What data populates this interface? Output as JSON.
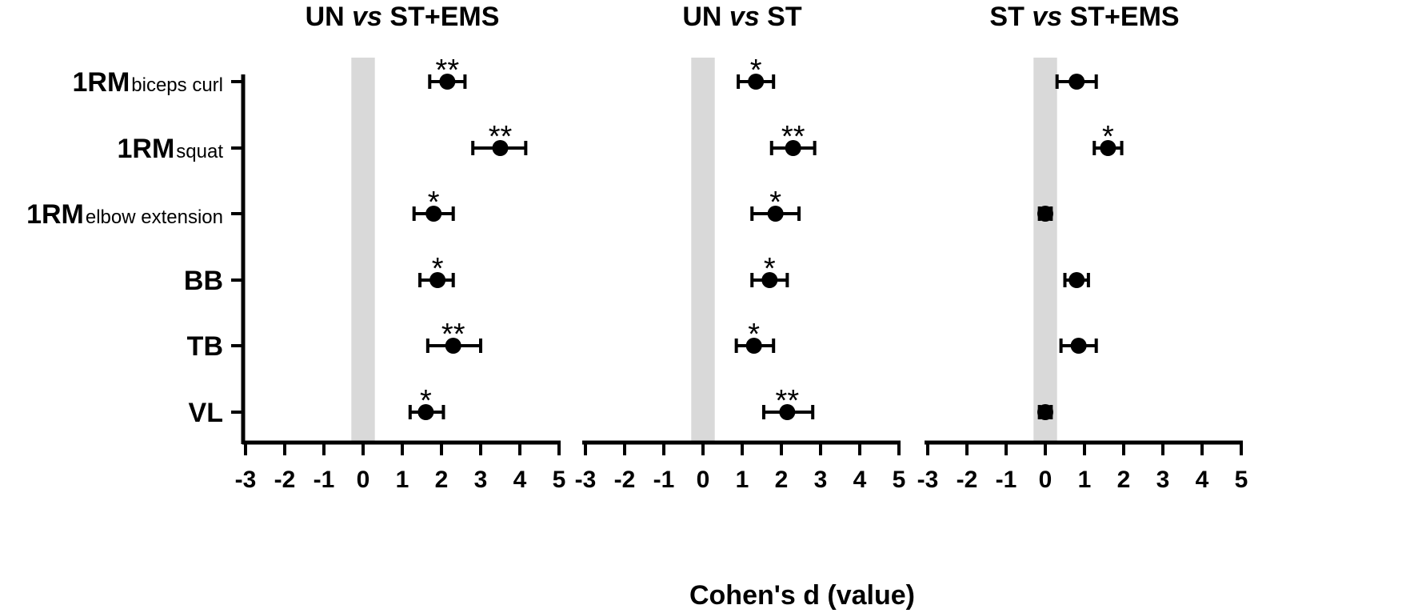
{
  "chart_data": {
    "type": "forest",
    "xlabel": "Cohen's d (value)",
    "xlim": [
      -3,
      5
    ],
    "xticks": [
      "-3",
      "-2",
      "-1",
      "0",
      "1",
      "2",
      "3",
      "4",
      "5"
    ],
    "reference_band": [
      -0.3,
      0.3
    ],
    "rows": [
      {
        "main": "1RM",
        "sub": "biceps curl"
      },
      {
        "main": "1RM",
        "sub": "squat"
      },
      {
        "main": "1RM",
        "sub": "elbow extension"
      },
      {
        "main": "BB",
        "sub": ""
      },
      {
        "main": "TB",
        "sub": ""
      },
      {
        "main": "VL",
        "sub": ""
      }
    ],
    "panels": [
      {
        "title_a": "UN ",
        "title_b": "vs",
        "title_c": " ST+EMS",
        "points": [
          {
            "d": 2.15,
            "lo": 1.7,
            "hi": 2.6,
            "sig": "**"
          },
          {
            "d": 3.5,
            "lo": 2.8,
            "hi": 4.15,
            "sig": "**"
          },
          {
            "d": 1.8,
            "lo": 1.3,
            "hi": 2.3,
            "sig": "*"
          },
          {
            "d": 1.9,
            "lo": 1.45,
            "hi": 2.3,
            "sig": "*"
          },
          {
            "d": 2.3,
            "lo": 1.65,
            "hi": 3.0,
            "sig": "**"
          },
          {
            "d": 1.6,
            "lo": 1.2,
            "hi": 2.05,
            "sig": "*"
          }
        ]
      },
      {
        "title_a": "UN ",
        "title_b": "vs",
        "title_c": " ST",
        "points": [
          {
            "d": 1.35,
            "lo": 0.9,
            "hi": 1.8,
            "sig": "*"
          },
          {
            "d": 2.3,
            "lo": 1.75,
            "hi": 2.85,
            "sig": "**"
          },
          {
            "d": 1.85,
            "lo": 1.25,
            "hi": 2.45,
            "sig": "*"
          },
          {
            "d": 1.7,
            "lo": 1.25,
            "hi": 2.15,
            "sig": "*"
          },
          {
            "d": 1.3,
            "lo": 0.85,
            "hi": 1.8,
            "sig": "*"
          },
          {
            "d": 2.15,
            "lo": 1.55,
            "hi": 2.8,
            "sig": "**"
          }
        ]
      },
      {
        "title_a": "ST ",
        "title_b": "vs",
        "title_c": " ST+EMS",
        "points": [
          {
            "d": 0.8,
            "lo": 0.3,
            "hi": 1.3,
            "sig": ""
          },
          {
            "d": 1.6,
            "lo": 1.25,
            "hi": 1.95,
            "sig": "*"
          },
          {
            "d": 0.0,
            "lo": -0.15,
            "hi": 0.15,
            "sig": ""
          },
          {
            "d": 0.8,
            "lo": 0.5,
            "hi": 1.1,
            "sig": ""
          },
          {
            "d": 0.85,
            "lo": 0.4,
            "hi": 1.3,
            "sig": ""
          },
          {
            "d": 0.0,
            "lo": -0.15,
            "hi": 0.15,
            "sig": ""
          }
        ]
      }
    ]
  }
}
